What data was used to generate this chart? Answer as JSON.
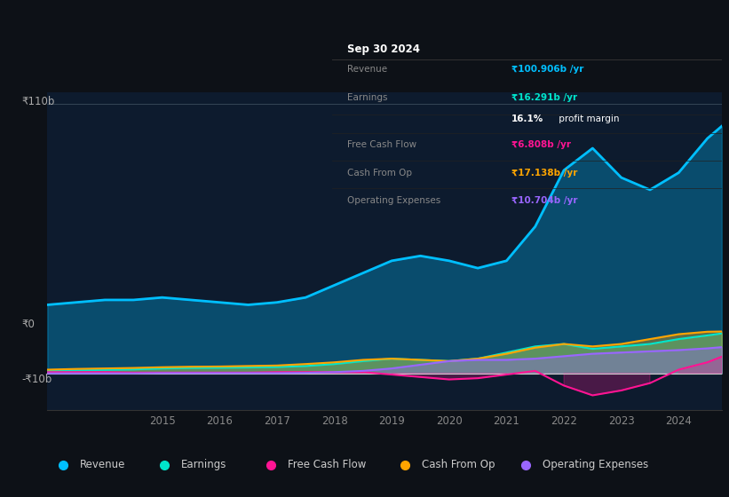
{
  "background_color": "#0d1117",
  "plot_bg_color": "#0d1b2e",
  "years": [
    2013.0,
    2013.5,
    2014.0,
    2014.5,
    2015.0,
    2015.5,
    2016.0,
    2016.5,
    2017.0,
    2017.5,
    2018.0,
    2018.5,
    2019.0,
    2019.5,
    2020.0,
    2020.5,
    2021.0,
    2021.5,
    2022.0,
    2022.5,
    2023.0,
    2023.5,
    2024.0,
    2024.5,
    2024.75
  ],
  "revenue": [
    28,
    29,
    30,
    30,
    31,
    30,
    29,
    28,
    29,
    31,
    36,
    41,
    46,
    48,
    46,
    43,
    46,
    60,
    83,
    92,
    80,
    75,
    82,
    96,
    101
  ],
  "earnings": [
    1.0,
    1.2,
    1.4,
    1.6,
    2.0,
    2.2,
    2.3,
    2.4,
    2.6,
    3.0,
    3.8,
    5.0,
    6.0,
    5.5,
    5.0,
    6.0,
    8.5,
    11,
    12,
    10,
    11,
    12,
    14,
    15.5,
    16.3
  ],
  "free_cash_flow": [
    0.5,
    0.5,
    0.5,
    0.3,
    0.3,
    0.3,
    0.3,
    0.3,
    0.5,
    0.5,
    0.5,
    0.5,
    -0.5,
    -1.5,
    -2.5,
    -2.0,
    -0.5,
    1.0,
    -5,
    -9,
    -7,
    -4,
    1.5,
    4.5,
    6.8
  ],
  "cash_from_op": [
    1.5,
    1.8,
    2.0,
    2.2,
    2.5,
    2.7,
    2.8,
    3.0,
    3.2,
    3.8,
    4.5,
    5.5,
    6.0,
    5.5,
    5.0,
    6.0,
    8.0,
    10.5,
    12,
    11,
    12,
    14,
    16,
    17,
    17.1
  ],
  "operating_expenses": [
    0.0,
    0.0,
    0.0,
    0.0,
    0.1,
    0.1,
    0.1,
    0.1,
    0.1,
    0.2,
    0.5,
    1.0,
    2.0,
    3.5,
    5.0,
    5.5,
    5.5,
    6.0,
    7.0,
    8.0,
    8.5,
    9.0,
    9.5,
    10.2,
    10.7
  ],
  "revenue_color": "#00bfff",
  "earnings_color": "#00e5cc",
  "free_cash_flow_color": "#ff1493",
  "cash_from_op_color": "#ffa500",
  "operating_expenses_color": "#9966ff",
  "ylim": [
    -15,
    115
  ],
  "xlabel_years": [
    2015,
    2016,
    2017,
    2018,
    2019,
    2020,
    2021,
    2022,
    2023,
    2024
  ],
  "info_box": {
    "title": "Sep 30 2024",
    "rows": [
      {
        "label": "Revenue",
        "value": "₹100.906b /yr",
        "value_color": "#00bfff"
      },
      {
        "label": "Earnings",
        "value": "₹16.291b /yr",
        "value_color": "#00e5cc"
      },
      {
        "label": "",
        "value": "16.1% profit margin",
        "value_color": "#ffffff"
      },
      {
        "label": "Free Cash Flow",
        "value": "₹6.808b /yr",
        "value_color": "#ff1493"
      },
      {
        "label": "Cash From Op",
        "value": "₹17.138b /yr",
        "value_color": "#ffa500"
      },
      {
        "label": "Operating Expenses",
        "value": "₹10.704b /yr",
        "value_color": "#9966ff"
      }
    ]
  },
  "legend": [
    {
      "label": "Revenue",
      "color": "#00bfff"
    },
    {
      "label": "Earnings",
      "color": "#00e5cc"
    },
    {
      "label": "Free Cash Flow",
      "color": "#ff1493"
    },
    {
      "label": "Cash From Op",
      "color": "#ffa500"
    },
    {
      "label": "Operating Expenses",
      "color": "#9966ff"
    }
  ]
}
